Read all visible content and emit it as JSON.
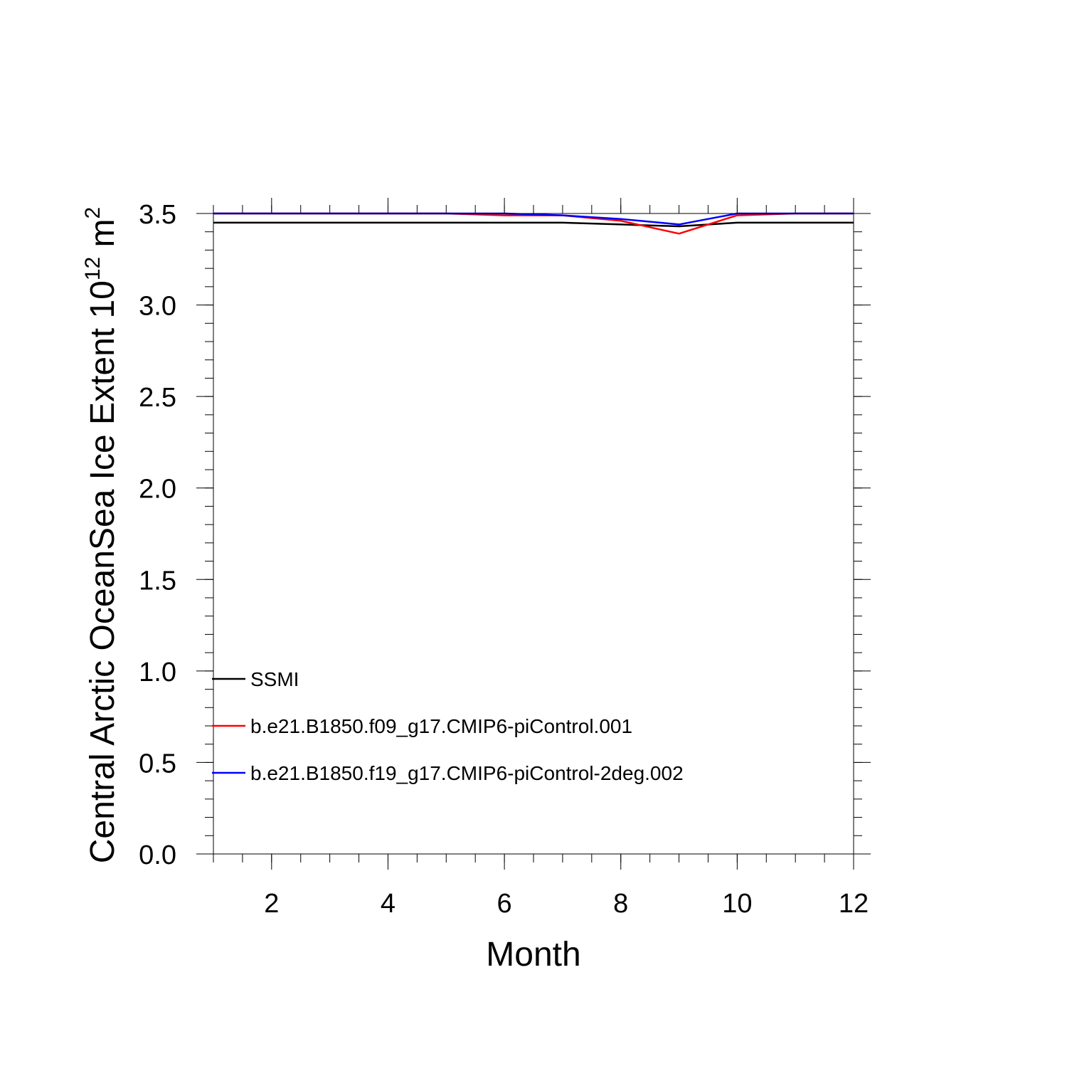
{
  "chart_data": {
    "type": "line",
    "xlabel": "Month",
    "ylabel_main": "Central Arctic OceanSea Ice Extent 10",
    "ylabel_exp": "12",
    "ylabel_unit": " m",
    "ylabel_unit_exp": "2",
    "xlim": [
      1,
      12
    ],
    "ylim": [
      0.0,
      3.5
    ],
    "x_ticks": [
      2,
      4,
      6,
      8,
      10,
      12
    ],
    "x_tick_labels": [
      "2",
      "4",
      "6",
      "8",
      "10",
      "12"
    ],
    "y_ticks": [
      0.0,
      0.5,
      1.0,
      1.5,
      2.0,
      2.5,
      3.0,
      3.5
    ],
    "y_tick_labels": [
      "0.0",
      "0.5",
      "1.0",
      "1.5",
      "2.0",
      "2.5",
      "3.0",
      "3.5"
    ],
    "x": [
      1,
      2,
      3,
      4,
      5,
      6,
      7,
      8,
      9,
      10,
      11,
      12
    ],
    "series": [
      {
        "name": "SSMI",
        "color": "#000000",
        "values": [
          3.45,
          3.45,
          3.45,
          3.45,
          3.45,
          3.45,
          3.45,
          3.44,
          3.43,
          3.45,
          3.45,
          3.45
        ]
      },
      {
        "name": "b.e21.B1850.f09_g17.CMIP6-piControl.001",
        "color": "#ff0000",
        "values": [
          3.5,
          3.5,
          3.5,
          3.5,
          3.5,
          3.49,
          3.49,
          3.46,
          3.39,
          3.49,
          3.5,
          3.5
        ]
      },
      {
        "name": "b.e21.B1850.f19_g17.CMIP6-piControl-2deg.002",
        "color": "#0000ff",
        "values": [
          3.5,
          3.5,
          3.5,
          3.5,
          3.5,
          3.5,
          3.49,
          3.47,
          3.44,
          3.5,
          3.5,
          3.5
        ]
      }
    ],
    "legend_position": "lower-left",
    "grid": false
  }
}
